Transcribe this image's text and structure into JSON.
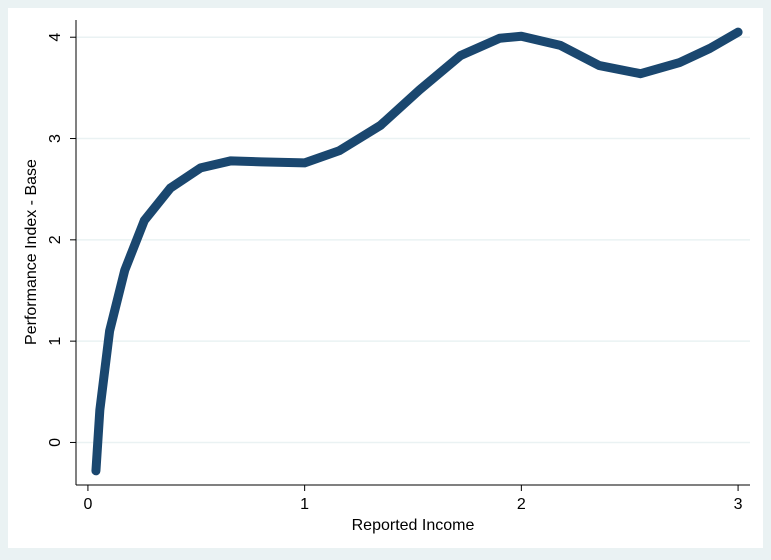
{
  "chart_data": {
    "type": "line",
    "x_label": "Reported Income",
    "y_label": "Performance Index - Base",
    "x": [
      0.037,
      0.055,
      0.1,
      0.17,
      0.26,
      0.38,
      0.52,
      0.66,
      0.8,
      1.0,
      1.16,
      1.35,
      1.53,
      1.72,
      1.9,
      2.0,
      2.18,
      2.36,
      2.55,
      2.73,
      2.87,
      3.0
    ],
    "series": [
      {
        "name": "Performance Index - Base",
        "color": "#1a476f",
        "values": [
          -0.28,
          0.32,
          1.1,
          1.7,
          2.19,
          2.51,
          2.71,
          2.78,
          2.77,
          2.76,
          2.88,
          3.13,
          3.48,
          3.82,
          3.99,
          4.01,
          3.92,
          3.72,
          3.64,
          3.75,
          3.89,
          4.05
        ]
      }
    ],
    "xlim": [
      -0.055,
      3.055
    ],
    "ylim": [
      -0.42,
      4.17
    ],
    "xticks": [
      0,
      1,
      2,
      3
    ],
    "yticks": [
      0,
      1,
      2,
      3,
      4
    ],
    "grid": true
  }
}
